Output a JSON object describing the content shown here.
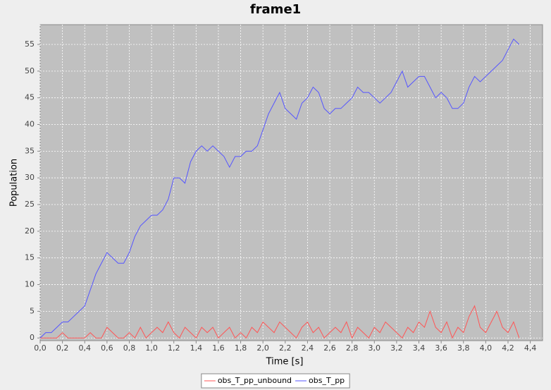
{
  "chart_data": {
    "type": "line",
    "title": "frame1",
    "x_label": "Time [s]",
    "y_label": "Population",
    "x": [
      0,
      0.05,
      0.1,
      0.15,
      0.2,
      0.25,
      0.3,
      0.35,
      0.4,
      0.45,
      0.5,
      0.55,
      0.6,
      0.65,
      0.7,
      0.75,
      0.8,
      0.85,
      0.9,
      0.95,
      1.0,
      1.05,
      1.1,
      1.15,
      1.2,
      1.25,
      1.3,
      1.35,
      1.4,
      1.45,
      1.5,
      1.55,
      1.6,
      1.65,
      1.7,
      1.75,
      1.8,
      1.85,
      1.9,
      1.95,
      2.0,
      2.05,
      2.1,
      2.15,
      2.2,
      2.25,
      2.3,
      2.35,
      2.4,
      2.45,
      2.5,
      2.55,
      2.6,
      2.65,
      2.7,
      2.75,
      2.8,
      2.85,
      2.9,
      2.95,
      3.0,
      3.05,
      3.1,
      3.15,
      3.2,
      3.25,
      3.3,
      3.35,
      3.4,
      3.45,
      3.5,
      3.55,
      3.6,
      3.65,
      3.7,
      3.75,
      3.8,
      3.85,
      3.9,
      3.95,
      4.0,
      4.05,
      4.1,
      4.15,
      4.2,
      4.25,
      4.3
    ],
    "series": [
      {
        "name": "obs_T_pp_unbound",
        "color": "#ff5555",
        "values": [
          0,
          0,
          0,
          0,
          1,
          0,
          0,
          0,
          0,
          1,
          0,
          0,
          2,
          1,
          0,
          0,
          1,
          0,
          2,
          0,
          1,
          2,
          1,
          3,
          1,
          0,
          2,
          1,
          0,
          2,
          1,
          2,
          0,
          1,
          2,
          0,
          1,
          0,
          2,
          1,
          3,
          2,
          1,
          3,
          2,
          1,
          0,
          2,
          3,
          1,
          2,
          0,
          1,
          2,
          1,
          3,
          0,
          2,
          1,
          0,
          2,
          1,
          3,
          2,
          1,
          0,
          2,
          1,
          3,
          2,
          5,
          2,
          1,
          3,
          0,
          2,
          1,
          4,
          6,
          2,
          1,
          3,
          5,
          2,
          1,
          3,
          0
        ]
      },
      {
        "name": "obs_T_pp",
        "color": "#5555ff",
        "values": [
          0,
          1,
          1,
          2,
          3,
          3,
          4,
          5,
          6,
          9,
          12,
          14,
          16,
          15,
          14,
          14,
          16,
          19,
          21,
          22,
          23,
          23,
          24,
          26,
          30,
          30,
          29,
          33,
          35,
          36,
          35,
          36,
          35,
          34,
          32,
          34,
          34,
          35,
          35,
          36,
          39,
          42,
          44,
          46,
          43,
          42,
          41,
          44,
          45,
          47,
          46,
          43,
          42,
          43,
          43,
          44,
          45,
          47,
          46,
          46,
          45,
          44,
          45,
          46,
          48,
          50,
          47,
          48,
          49,
          49,
          47,
          45,
          46,
          45,
          43,
          43,
          44,
          47,
          49,
          48,
          49,
          50,
          51,
          52,
          54,
          56,
          55
        ]
      }
    ],
    "xlim": [
      0,
      4.51
    ],
    "ylim": [
      -0.5,
      58.7
    ],
    "xticks": [
      {
        "value": 0,
        "label": "0,0"
      },
      {
        "value": 0.2,
        "label": "0,2"
      },
      {
        "value": 0.4,
        "label": "0,4"
      },
      {
        "value": 0.6,
        "label": "0,6"
      },
      {
        "value": 0.8,
        "label": "0,8"
      },
      {
        "value": 1.0,
        "label": "1,0"
      },
      {
        "value": 1.2,
        "label": "1,2"
      },
      {
        "value": 1.4,
        "label": "1,4"
      },
      {
        "value": 1.6,
        "label": "1,6"
      },
      {
        "value": 1.8,
        "label": "1,8"
      },
      {
        "value": 2.0,
        "label": "2,0"
      },
      {
        "value": 2.2,
        "label": "2,2"
      },
      {
        "value": 2.4,
        "label": "2,4"
      },
      {
        "value": 2.6,
        "label": "2,6"
      },
      {
        "value": 2.8,
        "label": "2,8"
      },
      {
        "value": 3.0,
        "label": "3,0"
      },
      {
        "value": 3.2,
        "label": "3,2"
      },
      {
        "value": 3.4,
        "label": "3,4"
      },
      {
        "value": 3.6,
        "label": "3,6"
      },
      {
        "value": 3.8,
        "label": "3,8"
      },
      {
        "value": 4.0,
        "label": "4,0"
      },
      {
        "value": 4.2,
        "label": "4,2"
      },
      {
        "value": 4.4,
        "label": "4,4"
      }
    ],
    "yticks": [
      0,
      5,
      10,
      15,
      20,
      25,
      30,
      35,
      40,
      45,
      50,
      55
    ],
    "grid": true,
    "legend": "bottom"
  }
}
